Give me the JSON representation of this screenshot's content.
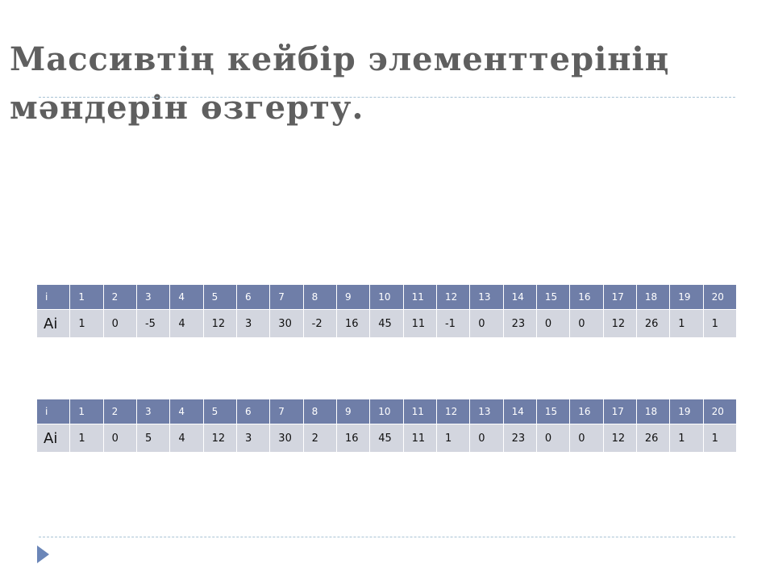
{
  "slide": {
    "title": "Массивтің кейбір элементтерінің мәндерін өзгерту."
  },
  "tables": [
    {
      "index_label": "i",
      "indices": [
        "1",
        "2",
        "3",
        "4",
        "5",
        "6",
        "7",
        "8",
        "9",
        "10",
        "11",
        "12",
        "13",
        "14",
        "15",
        "16",
        "17",
        "18",
        "19",
        "20"
      ],
      "value_label": "Ai",
      "values": [
        "1",
        "0",
        "-5",
        "4",
        "12",
        "3",
        "30",
        "-2",
        "16",
        "45",
        "11",
        "-1",
        "0",
        "23",
        "0",
        "0",
        "12",
        "26",
        "1",
        "1"
      ]
    },
    {
      "index_label": "i",
      "indices": [
        "1",
        "2",
        "3",
        "4",
        "5",
        "6",
        "7",
        "8",
        "9",
        "10",
        "11",
        "12",
        "13",
        "14",
        "15",
        "16",
        "17",
        "18",
        "19",
        "20"
      ],
      "value_label": "Ai",
      "values": [
        "1",
        "0",
        "5",
        "4",
        "12",
        "3",
        "30",
        "2",
        "16",
        "45",
        "11",
        "1",
        "0",
        "23",
        "0",
        "0",
        "12",
        "26",
        "1",
        "1"
      ]
    }
  ],
  "colors": {
    "header_bg": "#6f7ea8",
    "value_bg": "#d3d6df",
    "title_color": "#5f5f5f",
    "rule_color": "#a9c3d4",
    "bullet_color": "#6b86b8"
  },
  "icons": {
    "bottom_bullet": "play-triangle-icon"
  }
}
